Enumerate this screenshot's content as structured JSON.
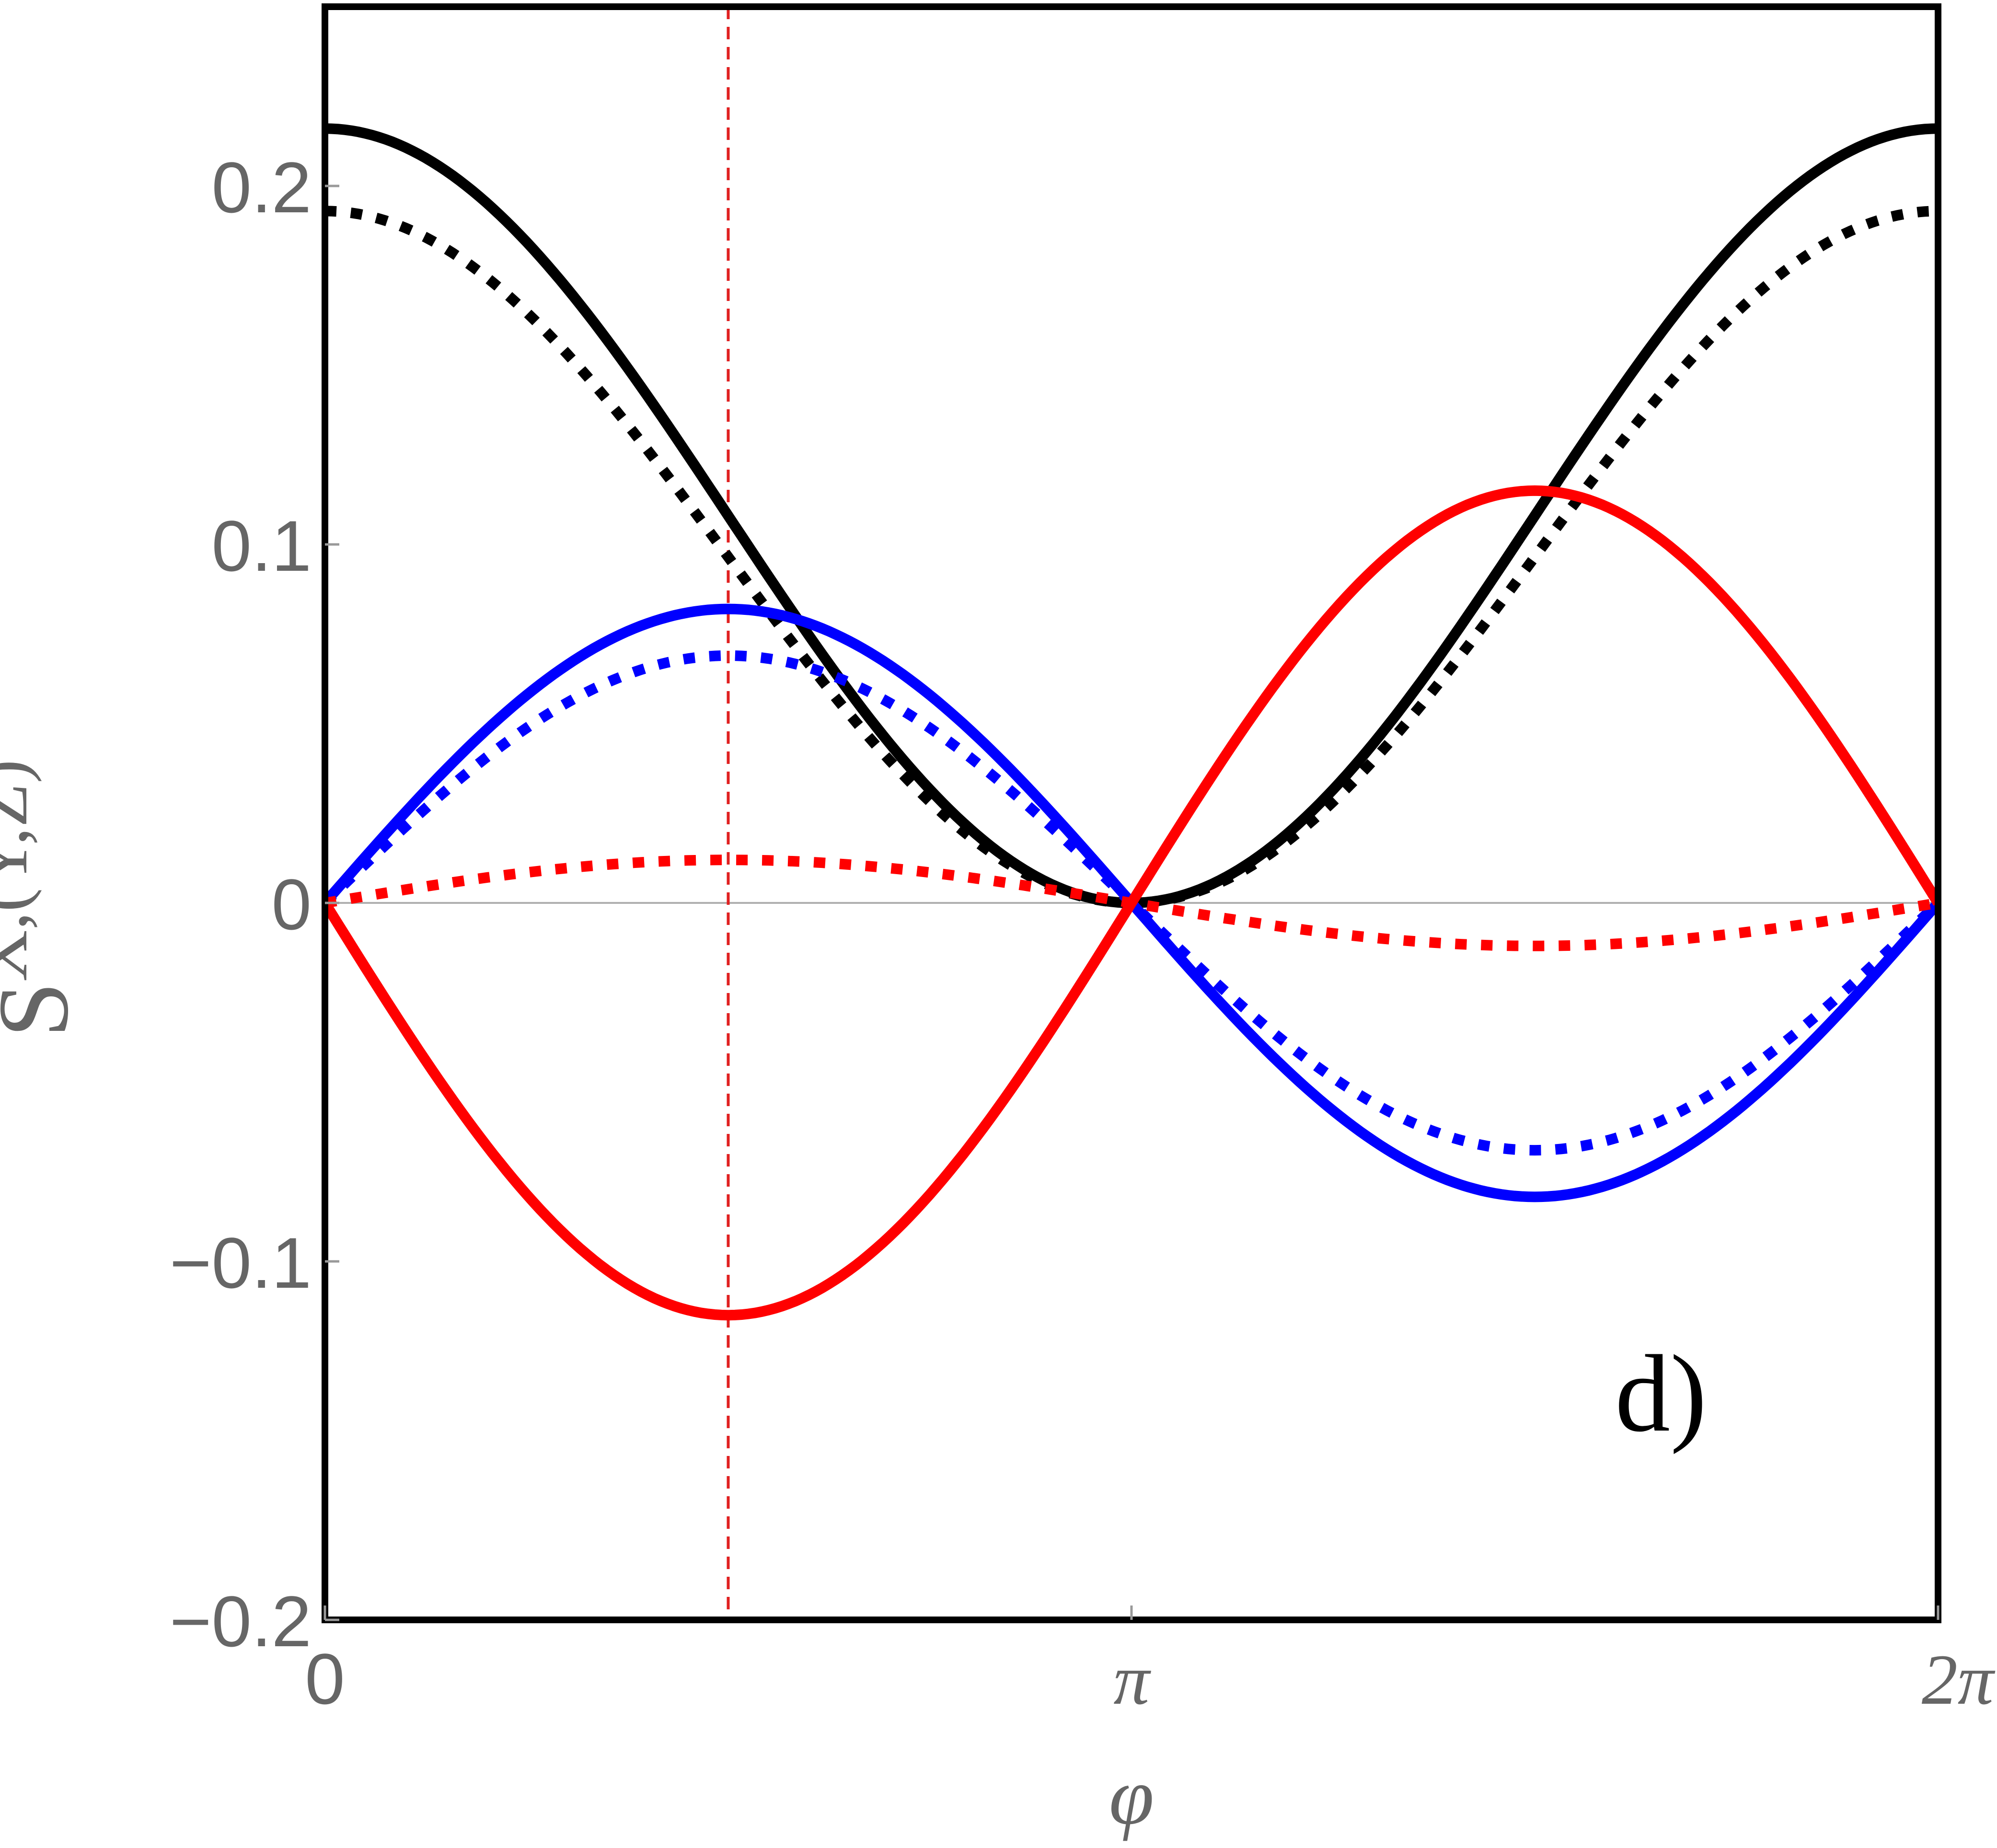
{
  "chart_data": {
    "type": "line",
    "title": "",
    "xlabel": "φ",
    "ylabel": {
      "base": "S",
      "superscript": "X,(Y,Z)"
    },
    "panel_label": "d)",
    "xlim": [
      0,
      6.283185
    ],
    "ylim": [
      -0.2,
      0.25
    ],
    "x_ticks": [
      {
        "value": 0,
        "label": "0"
      },
      {
        "value": 3.141593,
        "label": "π"
      },
      {
        "value": 6.283185,
        "label": "2π"
      }
    ],
    "y_ticks": [
      {
        "value": -0.2,
        "label": "−0.2"
      },
      {
        "value": -0.1,
        "label": "−0.1"
      },
      {
        "value": 0,
        "label": "0"
      },
      {
        "value": 0.1,
        "label": "0.1"
      },
      {
        "value": 0.2,
        "label": "0.2"
      }
    ],
    "vertical_reference_line": {
      "x": 1.5708,
      "color": "#e02020",
      "style": "dashed"
    },
    "horizontal_reference_line": {
      "y": 0,
      "color": "#b0b0b0"
    },
    "series": [
      {
        "color": "#000000",
        "style": "solid",
        "formula": "0.108 + 0.108*cos(x)",
        "x": [
          0,
          1.5708,
          3.1416,
          4.7124,
          6.2832
        ],
        "y": [
          0.216,
          0.108,
          0.0,
          0.108,
          0.216
        ]
      },
      {
        "color": "#000000",
        "style": "dotted",
        "formula": "0.0965 + 0.0965*cos(x)",
        "x": [
          0,
          1.5708,
          3.1416,
          4.7124,
          6.2832
        ],
        "y": [
          0.193,
          0.0965,
          0.0,
          0.0965,
          0.193
        ]
      },
      {
        "color": "#0000ff",
        "style": "solid",
        "formula": "0.082*sin(x)",
        "x": [
          0,
          1.5708,
          3.1416,
          4.7124,
          6.2832
        ],
        "y": [
          0.0,
          0.082,
          0.0,
          -0.082,
          0.0
        ]
      },
      {
        "color": "#0000ff",
        "style": "dotted",
        "formula": "0.069*sin(x)",
        "x": [
          0,
          1.5708,
          3.1416,
          4.7124,
          6.2832
        ],
        "y": [
          0.0,
          0.069,
          0.0,
          -0.069,
          0.0
        ]
      },
      {
        "color": "#ff0000",
        "style": "solid",
        "formula": "-0.115*sin(x)",
        "x": [
          0,
          1.5708,
          3.1416,
          4.7124,
          6.2832
        ],
        "y": [
          0.0,
          -0.115,
          0.0,
          0.115,
          0.0
        ]
      },
      {
        "color": "#ff0000",
        "style": "dotted",
        "formula": "0.012*sin(x)",
        "x": [
          0,
          1.5708,
          3.1416,
          4.7124,
          6.2832
        ],
        "y": [
          0.0,
          0.012,
          0.0,
          -0.012,
          0.0
        ]
      }
    ]
  }
}
